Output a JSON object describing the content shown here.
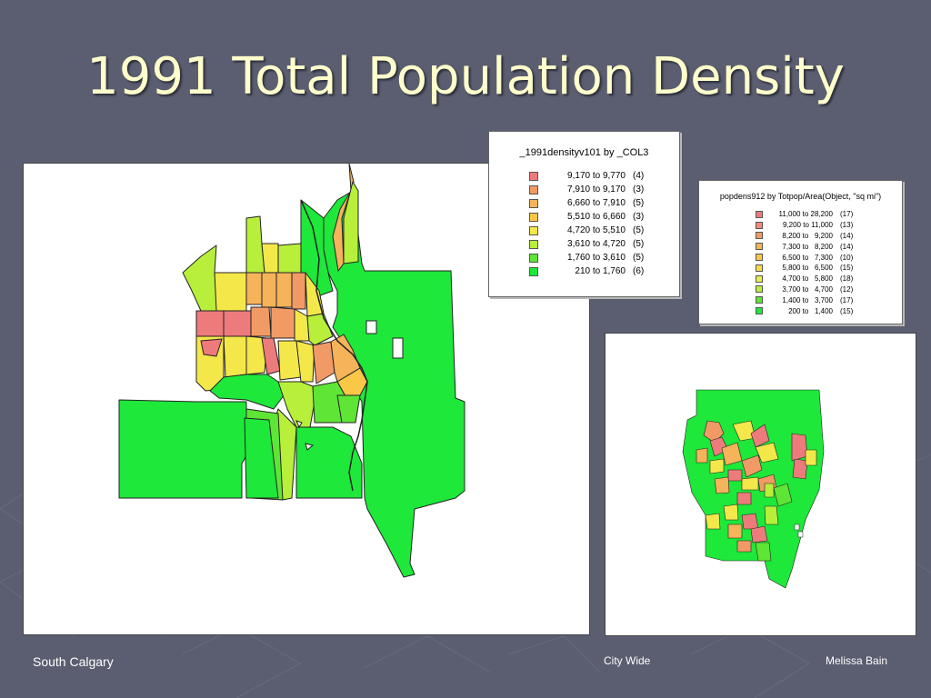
{
  "slide": {
    "title": "1991 Total Population Density"
  },
  "legend_south": {
    "title": "_1991densityv101 by _COL3",
    "items": [
      {
        "range": "9,170 to 9,770",
        "count": "(4)",
        "color": "#ee7b7b"
      },
      {
        "range": "7,910 to 9,170",
        "count": "(3)",
        "color": "#f19a66"
      },
      {
        "range": "6,660 to 7,910",
        "count": "(5)",
        "color": "#f5b35a"
      },
      {
        "range": "5,510 to 6,660",
        "count": "(3)",
        "color": "#fbc746"
      },
      {
        "range": "4,720 to 5,510",
        "count": "(5)",
        "color": "#f4e74a"
      },
      {
        "range": "3,610 to 4,720",
        "count": "(5)",
        "color": "#b8ef3a"
      },
      {
        "range": "1,760 to 3,610",
        "count": "(5)",
        "color": "#5fe535"
      },
      {
        "range": "210 to 1,760",
        "count": "(6)",
        "color": "#1ee83a"
      }
    ]
  },
  "legend_city": {
    "title": "popdens912 by Totpop/Area(Object, \"sq mi\")",
    "items": [
      {
        "range": "11,000 to 28,200",
        "count": "(17)",
        "color": "#ee7b7b"
      },
      {
        "range": "9,200 to 11,000",
        "count": "(13)",
        "color": "#f08a7a"
      },
      {
        "range": "8,200 to   9,200",
        "count": "(14)",
        "color": "#f19a66"
      },
      {
        "range": "7,300 to   8,200",
        "count": "(14)",
        "color": "#f5b35a"
      },
      {
        "range": "6,500 to   7,300",
        "count": "(10)",
        "color": "#fbc746"
      },
      {
        "range": "5,800 to   6,500",
        "count": "(15)",
        "color": "#f9da4a"
      },
      {
        "range": "4,700 to   5,800",
        "count": "(18)",
        "color": "#e6f04c"
      },
      {
        "range": "3,700 to   4,700",
        "count": "(12)",
        "color": "#b8ef3a"
      },
      {
        "range": "1,400 to   3,700",
        "count": "(17)",
        "color": "#5fe535"
      },
      {
        "range": "200 to   1,400",
        "count": "(15)",
        "color": "#1ee83a"
      }
    ]
  },
  "footer": {
    "left": "South Calgary",
    "center": "City Wide",
    "right": "Melissa Bain"
  }
}
